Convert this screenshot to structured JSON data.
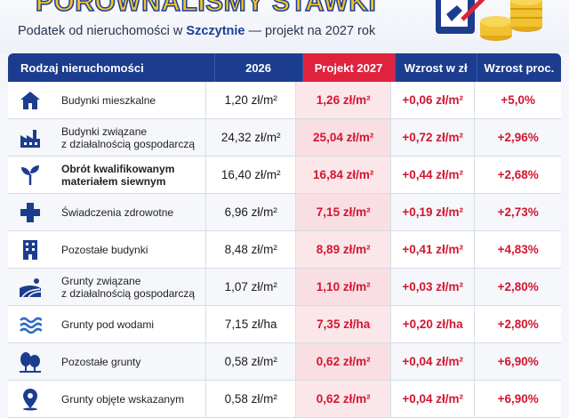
{
  "header": {
    "title": "PORÓWNALIŚMY STAWKI",
    "subtitle_pre": "Podatek od nieruchomości w ",
    "subtitle_city": "Szczytnie",
    "subtitle_post": " — projekt na 2027 rok"
  },
  "table": {
    "headers": {
      "kind": "Rodzaj nieruchomości",
      "y2026": "2026",
      "proj": "Projekt 2027",
      "dz": "Wzrost w zł",
      "dp": "Wzrost proc."
    },
    "rows": [
      {
        "icon": "house-icon",
        "l1": "Budynki mieszkalne",
        "l2": "",
        "bold": false,
        "v2026": "1,20 zł/m²",
        "proj": "1,26 zł/m²",
        "dz": "+0,06 zł/m²",
        "dp": "+5,0%"
      },
      {
        "icon": "factory-icon",
        "l1": "Budynki związane",
        "l2": "z działalnością gospodarczą",
        "bold": false,
        "v2026": "24,32 zł/m²",
        "proj": "25,04 zł/m²",
        "dz": "+0,72 zł/m²",
        "dp": "+2,96%"
      },
      {
        "icon": "seedling-icon",
        "l1": "Obrót kwalifikowanym",
        "l2": "materiałem siewnym",
        "bold": true,
        "v2026": "16,40 zł/m²",
        "proj": "16,84 zł/m²",
        "dz": "+0,44 zł/m²",
        "dp": "+2,68%"
      },
      {
        "icon": "medical-cross-icon",
        "l1": "Świadczenia zdrowotne",
        "l2": "",
        "bold": false,
        "v2026": "6,96 zł/m²",
        "proj": "7,15 zł/m²",
        "dz": "+0,19 zł/m²",
        "dp": "+2,73%"
      },
      {
        "icon": "office-building-icon",
        "l1": "Pozostałe budynki",
        "l2": "",
        "bold": false,
        "v2026": "8,48 zł/m²",
        "proj": "8,89 zł/m²",
        "dz": "+0,41 zł/m²",
        "dp": "+4,83%"
      },
      {
        "icon": "farmland-icon",
        "l1": "Grunty związane",
        "l2": "z działalnością gospodarczą",
        "bold": false,
        "v2026": "1,07 zł/m²",
        "proj": "1,10 zł/m²",
        "dz": "+0,03 zł/m²",
        "dp": "+2,80%"
      },
      {
        "icon": "water-waves-icon",
        "l1": "Grunty pod wodami",
        "l2": "",
        "bold": false,
        "v2026": "7,15 zł/ha",
        "proj": "7,35 zł/ha",
        "dz": "+0,20 zł/ha",
        "dp": "+2,80%"
      },
      {
        "icon": "trees-icon",
        "l1": "Pozostałe grunty",
        "l2": "",
        "bold": false,
        "v2026": "0,58 zł/m²",
        "proj": "0,62 zł/m²",
        "dz": "+0,04 zł/m²",
        "dp": "+6,90%"
      },
      {
        "icon": "location-pin-icon",
        "l1": "Grunty objęte wskazanym",
        "l2": "",
        "bold": false,
        "v2026": "0,58 zł/m²",
        "proj": "0,62 zł/m²",
        "dz": "+0,04 zł/m²",
        "dp": "+6,90%"
      }
    ]
  },
  "colors": {
    "navy": "#1c3d8f",
    "red": "#d31631",
    "gold": "#f2c230"
  }
}
